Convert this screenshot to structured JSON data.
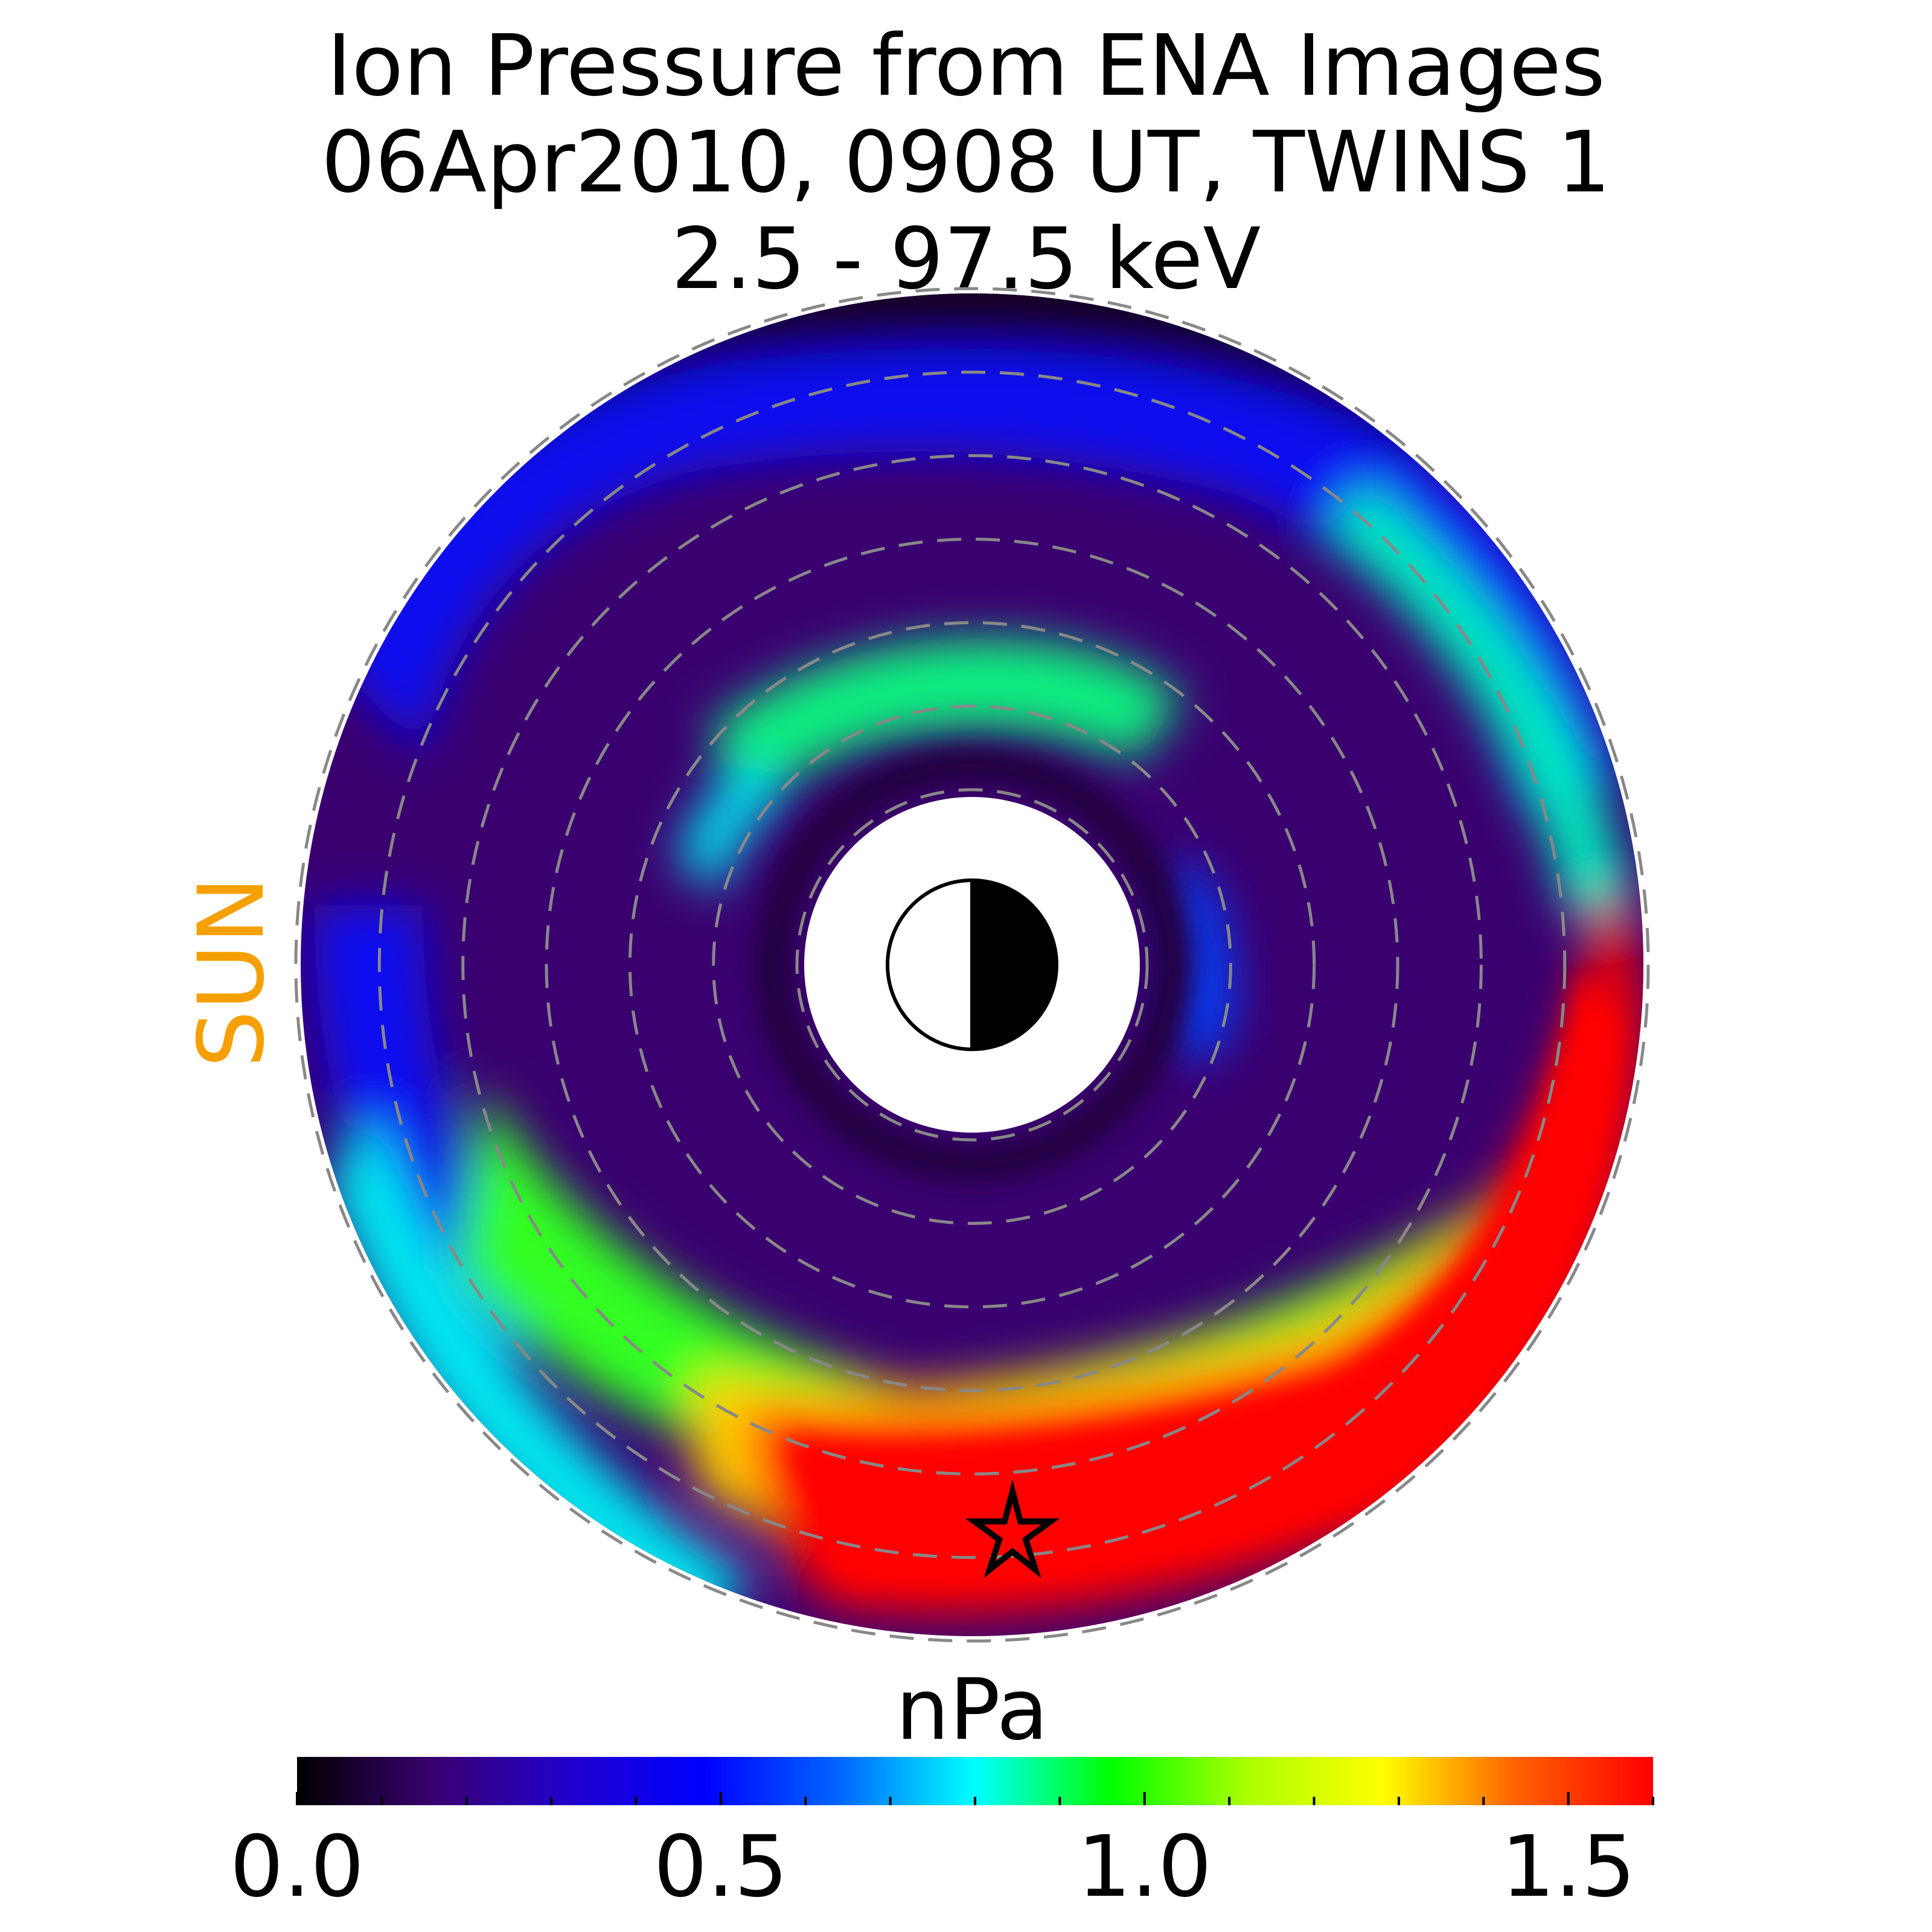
{
  "chart_data": {
    "type": "heatmap",
    "projection": "polar equatorial plot, noon (Sun) to the left",
    "title_lines": [
      "Ion Pressure from  ENA Images",
      "06Apr2010, 0908 UT,  TWINS 1",
      "2.5 - 97.5 keV"
    ],
    "sun_label": "SUN",
    "sun_label_color": "#f5a000",
    "colorbar": {
      "label": "nPa",
      "range": [
        0.0,
        1.6
      ],
      "ticks": [
        "0.0",
        "0.5",
        "1.0",
        "1.5"
      ],
      "tick_values": [
        0.0,
        0.5,
        1.0,
        1.5
      ],
      "colormap": [
        "#000000",
        "#3a0070",
        "#2200cc",
        "#0000ff",
        "#0066ff",
        "#00ffff",
        "#00ff00",
        "#aaff00",
        "#ffff00",
        "#ff6000",
        "#ff0000"
      ]
    },
    "reference_circles_count": 7,
    "earth_symbol": "half-dark circle (night side to the right)",
    "star_marker": true,
    "features": [
      {
        "region": "dusk / pre-midnight, large radius",
        "pressure_nPa": 1.6
      },
      {
        "region": "dawn-side arc, mid radius",
        "pressure_nPa": 0.8
      },
      {
        "region": "inner ring",
        "pressure_nPa": 0.25
      },
      {
        "region": "outer boundary",
        "pressure_nPa": 0.0
      }
    ]
  }
}
